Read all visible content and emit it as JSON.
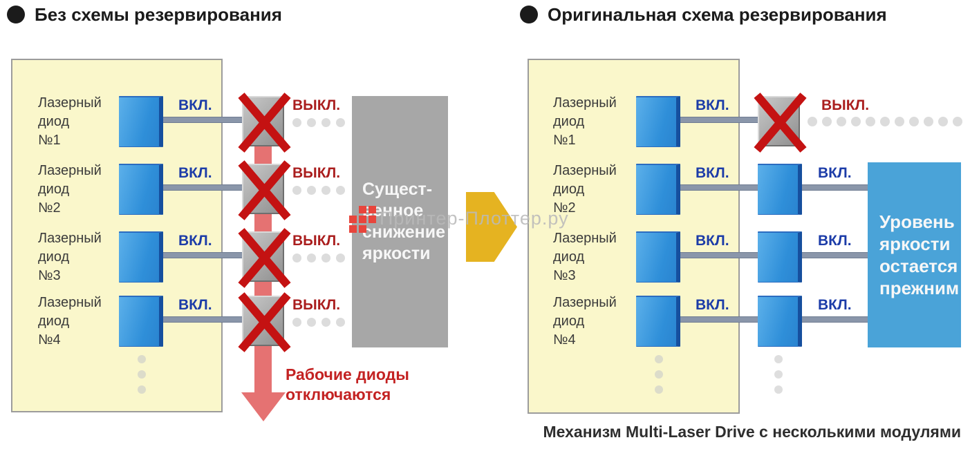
{
  "headers": {
    "left": "Без схемы резервирования",
    "right": "Оригинальная схема резервирования"
  },
  "left_panel": {
    "rows": [
      {
        "label": "Лазерный\nдиод\n№1",
        "state1": "ВКЛ.",
        "state2": "ВЫКЛ."
      },
      {
        "label": "Лазерный\nдиод\n№2",
        "state1": "ВКЛ.",
        "state2": "ВЫКЛ."
      },
      {
        "label": "Лазерный\nдиод\n№3",
        "state1": "ВКЛ.",
        "state2": "ВЫКЛ."
      },
      {
        "label": "Лазерный\nдиод\n№4",
        "state1": "ВКЛ.",
        "state2": "ВЫКЛ."
      }
    ],
    "result_box": "Сущест-\nвенное\nснижение\nяркости",
    "failure_note": "Рабочие диоды\nотключаются"
  },
  "right_panel": {
    "rows": [
      {
        "label": "Лазерный\nдиод\n№1",
        "state1": "ВКЛ.",
        "state2": "ВЫКЛ."
      },
      {
        "label": "Лазерный\nдиод\n№2",
        "state1": "ВКЛ.",
        "state2": "ВКЛ."
      },
      {
        "label": "Лазерный\nдиод\n№3",
        "state1": "ВКЛ.",
        "state2": "ВКЛ."
      },
      {
        "label": "Лазерный\nдиод\n№4",
        "state1": "ВКЛ.",
        "state2": "ВКЛ."
      }
    ],
    "result_box": "Уровень\nяркости\nостается\nпрежним",
    "caption": "Механизм Multi-Laser Drive с несколькими модулями"
  },
  "watermark": "Принтер-Плоттер.ру",
  "colors": {
    "panel_bg": "#faf7cb",
    "panel_border": "#9c9c9c",
    "diode_blue": "#2f8fd9",
    "diode_blue_light": "#5cb0ea",
    "diode_edge": "#164f9e",
    "wire": "#8a96aa",
    "on_text": "#1c3ca8",
    "off_text": "#aa1e1e",
    "x_red": "#c41212",
    "band_red": "#e57272",
    "gray_box": "#a7a7a7",
    "result_blue": "#4aa3d8",
    "arrow_yellow": "#e5b321",
    "dot_gray": "#dcdcdc",
    "text_dark": "#2e2e2e",
    "watermark_red": "#e8453c"
  }
}
